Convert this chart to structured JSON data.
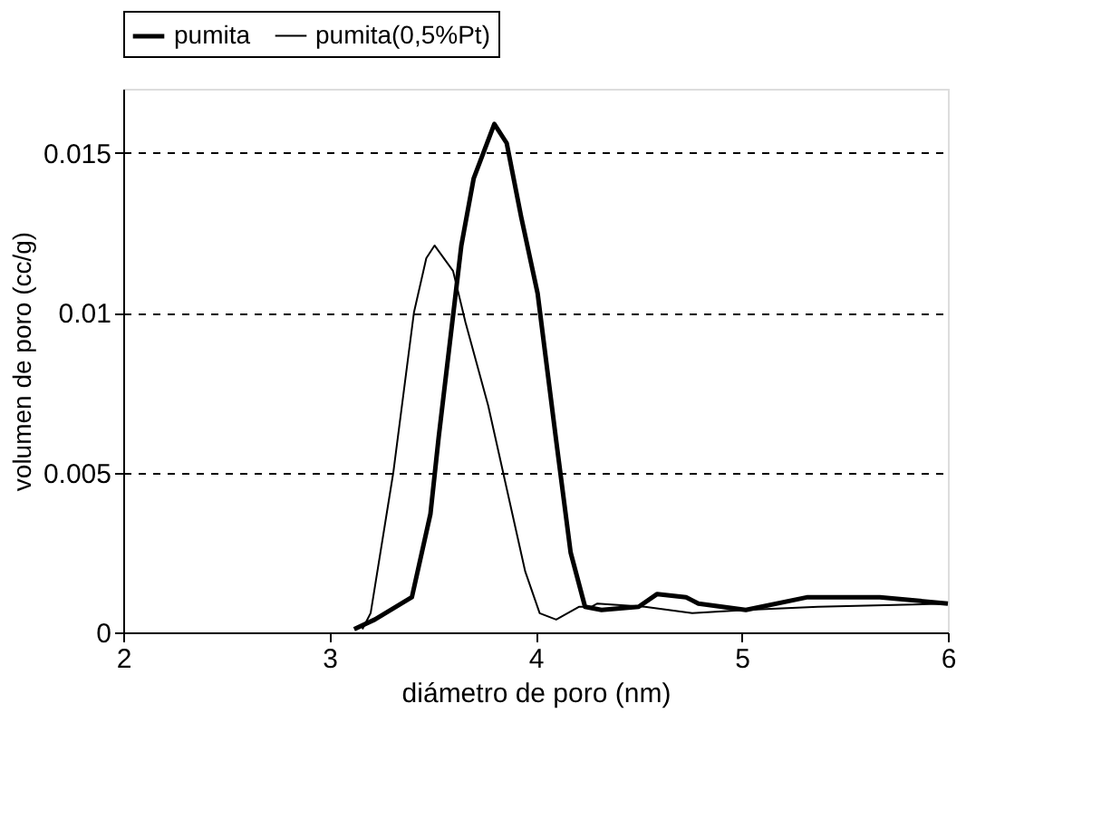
{
  "chart_data": {
    "type": "line",
    "xlabel": "diámetro de poro (nm)",
    "ylabel": "volumen de poro (cc/g)",
    "xlim": [
      2,
      6
    ],
    "xticks": [
      2,
      3,
      4,
      5,
      6
    ],
    "ylim": [
      0,
      0.017
    ],
    "yticks": [
      0,
      0.005,
      0.01,
      0.015
    ],
    "grid": "y",
    "legend": "top",
    "marker": "none",
    "series": [
      {
        "name": "pumita",
        "color": "#000000",
        "line_style": "solid",
        "x": [
          3.12,
          3.22,
          3.4,
          3.49,
          3.53,
          3.64,
          3.7,
          3.8,
          3.86,
          3.93,
          4.01,
          4.1,
          4.17,
          4.24,
          4.32,
          4.5,
          4.59,
          4.73,
          4.79,
          5.02,
          5.32,
          5.67,
          6.0
        ],
        "values": [
          0.0001,
          0.0004,
          0.0011,
          0.0037,
          0.0061,
          0.0121,
          0.0142,
          0.0159,
          0.0153,
          0.013,
          0.0106,
          0.006,
          0.0025,
          0.0008,
          0.0007,
          0.0008,
          0.0012,
          0.0011,
          0.0009,
          0.0007,
          0.0011,
          0.0011,
          0.0009
        ]
      },
      {
        "name": "pumita(0,5%Pt)",
        "color": "#000000",
        "line_style": "solid",
        "x": [
          3.16,
          3.2,
          3.31,
          3.41,
          3.47,
          3.51,
          3.6,
          3.66,
          3.77,
          3.86,
          3.95,
          4.02,
          4.1,
          4.21,
          4.27,
          4.3,
          4.53,
          4.76,
          5.02,
          5.37,
          6.0
        ],
        "values": [
          0.0001,
          0.0006,
          0.005,
          0.01,
          0.0117,
          0.0121,
          0.0113,
          0.0097,
          0.0071,
          0.0045,
          0.0019,
          0.0006,
          0.0004,
          0.0008,
          0.0008,
          0.0009,
          0.0008,
          0.0006,
          0.0007,
          0.0008,
          0.0009
        ]
      }
    ]
  }
}
